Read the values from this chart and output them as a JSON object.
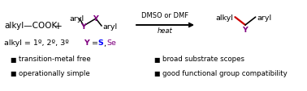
{
  "bg_color": "#ffffff",
  "fig_width": 3.78,
  "fig_height": 1.14,
  "dpi": 100,
  "reactant1_text": "alkyl—COOK",
  "plus_text": "+",
  "reagent_line_text": "DMSO or DMF",
  "reagent_italic_text": "heat",
  "alkyl_label": "alkyl = 1º, 2º, 3º",
  "Y_S": "S",
  "Y_Se": "Se",
  "bullet_items_left": [
    "transition-metal free",
    "operationally simple"
  ],
  "bullet_items_right": [
    "broad substrate scopes",
    "good functional group compatibility"
  ],
  "color_black": "#000000",
  "color_purple": "#800080",
  "color_blue": "#0000ff",
  "color_red": "#cc0000",
  "font_size_main": 7.5,
  "font_size_small": 6.8,
  "font_size_bullet": 6.2
}
